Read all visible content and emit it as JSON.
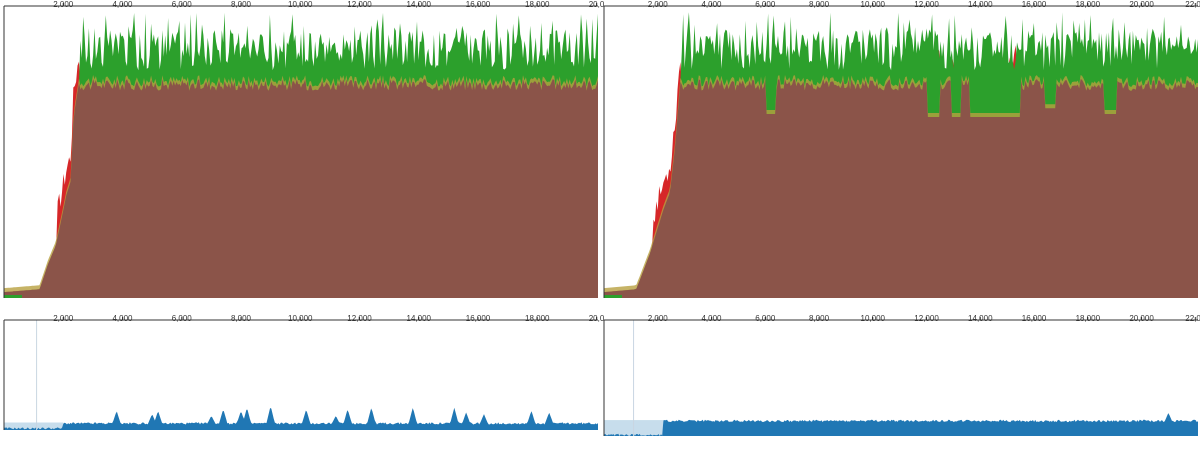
{
  "colors": {
    "background": "#ffffff",
    "axis": "#333333",
    "core": "#8b5449",
    "green": "#2ca02c",
    "red": "#d62728",
    "olive": "#b8a040",
    "blue": "#2077b4"
  },
  "chart_data": [
    {
      "panel": "top-left",
      "type": "area",
      "x_ticks": [
        "2,000",
        "4,000",
        "6,000",
        "8,000",
        "10,000",
        "12,000",
        "14,000",
        "16,000",
        "18,000",
        "20,0"
      ],
      "x_tick_values": [
        2000,
        4000,
        6000,
        8000,
        10000,
        12000,
        14000,
        16000,
        18000,
        20000
      ],
      "xlim": [
        0,
        20050
      ],
      "ylim": [
        0,
        1
      ],
      "plateau": 0.73,
      "ramp": [
        [
          0,
          0.02
        ],
        [
          1200,
          0.03
        ],
        [
          1500,
          0.12
        ],
        [
          1750,
          0.18
        ],
        [
          2000,
          0.3
        ],
        [
          2100,
          0.35
        ],
        [
          2250,
          0.4
        ],
        [
          2350,
          0.62
        ],
        [
          2550,
          0.75
        ]
      ],
      "dips": [],
      "series": [
        {
          "name": "",
          "color": "#8b5449",
          "layer": "core"
        },
        {
          "name": "",
          "color": "#2ca02c",
          "layer": "spikes"
        },
        {
          "name": "",
          "color": "#d62728",
          "layer": "ramp-edge"
        }
      ]
    },
    {
      "panel": "top-right",
      "type": "area",
      "x_ticks": [
        "2,000",
        "4,000",
        "6,000",
        "8,000",
        "10,000",
        "12,000",
        "14,000",
        "16,000",
        "18,000",
        "20,000",
        "22,00"
      ],
      "x_tick_values": [
        2000,
        4000,
        6000,
        8000,
        10000,
        12000,
        14000,
        16000,
        18000,
        20000,
        22000
      ],
      "xlim": [
        0,
        22100
      ],
      "ylim": [
        0,
        1
      ],
      "plateau": 0.73,
      "ramp": [
        [
          0,
          0.02
        ],
        [
          1200,
          0.03
        ],
        [
          1700,
          0.15
        ],
        [
          2200,
          0.3
        ],
        [
          2450,
          0.36
        ],
        [
          2650,
          0.52
        ],
        [
          2850,
          0.75
        ]
      ],
      "dips": [
        [
          6000,
          6400,
          0.63
        ],
        [
          12000,
          12500,
          0.62
        ],
        [
          12900,
          13300,
          0.62
        ],
        [
          13600,
          15500,
          0.62
        ],
        [
          16400,
          16800,
          0.65
        ],
        [
          18600,
          19100,
          0.63
        ]
      ],
      "series": [
        {
          "name": "",
          "color": "#8b5449",
          "layer": "core"
        },
        {
          "name": "",
          "color": "#2ca02c",
          "layer": "spikes"
        },
        {
          "name": "",
          "color": "#d62728",
          "layer": "dips"
        }
      ]
    },
    {
      "panel": "bottom-left",
      "type": "area",
      "x_ticks": [
        "2,000",
        "4,000",
        "6,000",
        "8,000",
        "10,000",
        "12,000",
        "14,000",
        "16,000",
        "18,000",
        "20,0"
      ],
      "x_tick_values": [
        2000,
        4000,
        6000,
        8000,
        10000,
        12000,
        14000,
        16000,
        18000,
        20000
      ],
      "xlim": [
        0,
        20050
      ],
      "ylim": [
        0,
        1
      ],
      "base": 0.05,
      "peaks": [
        3800,
        5000,
        5200,
        7000,
        7400,
        8000,
        8200,
        9000,
        10200,
        11200,
        11600,
        12400,
        13800,
        15200,
        15600,
        16200,
        17800,
        18400
      ],
      "color": "#2077b4"
    },
    {
      "panel": "bottom-right",
      "type": "area",
      "x_ticks": [
        "2,000",
        "4,000",
        "6,000",
        "8,000",
        "10,000",
        "12,000",
        "14,000",
        "16,000",
        "18,000",
        "20,000",
        "22,00"
      ],
      "x_tick_values": [
        2000,
        4000,
        6000,
        8000,
        10000,
        12000,
        14000,
        16000,
        18000,
        20000,
        22000
      ],
      "xlim": [
        0,
        22100
      ],
      "ylim": [
        0,
        1
      ],
      "base": 0.12,
      "peaks": [
        21000
      ],
      "color": "#2077b4"
    }
  ]
}
